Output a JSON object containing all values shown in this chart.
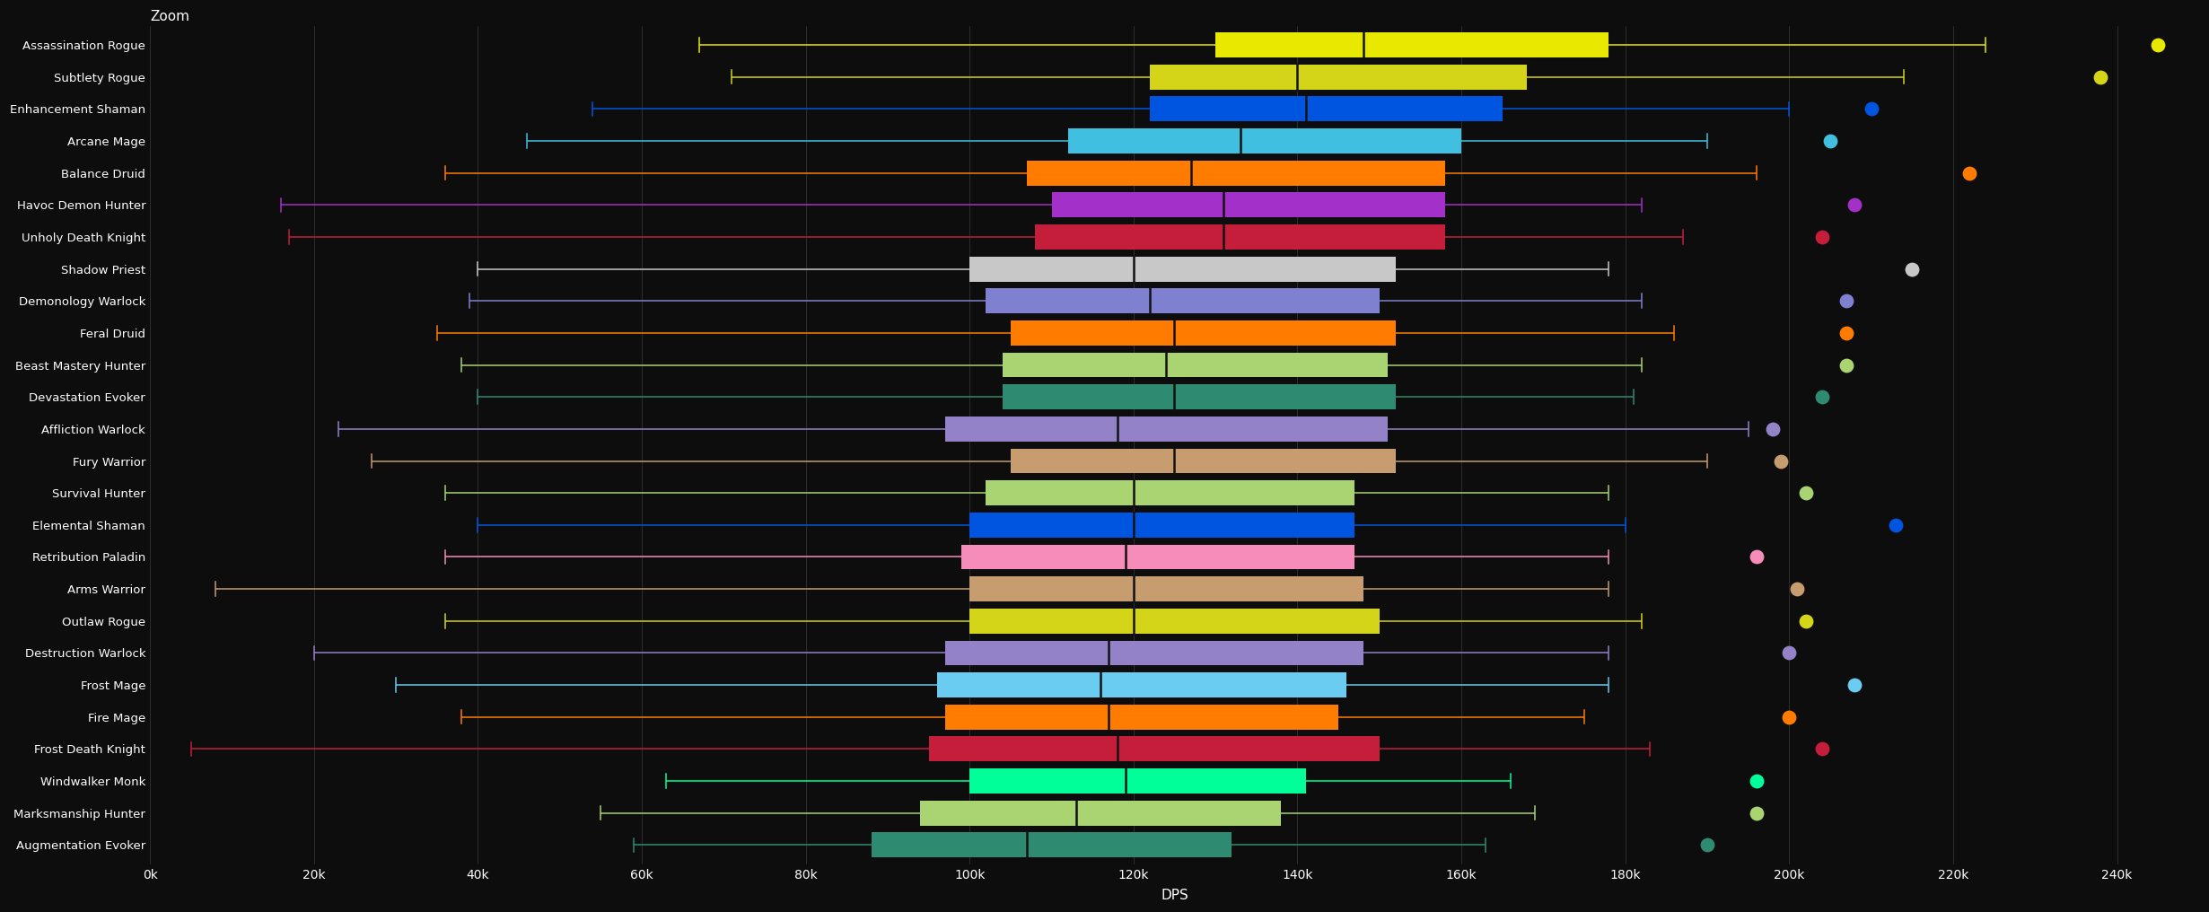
{
  "background_color": "#0d0d0d",
  "title": "Zoom",
  "xlabel": "DPS",
  "xlim": [
    0,
    250000
  ],
  "xticks": [
    0,
    20000,
    40000,
    60000,
    80000,
    100000,
    120000,
    140000,
    160000,
    180000,
    200000,
    220000,
    240000
  ],
  "xtick_labels": [
    "0k",
    "20k",
    "40k",
    "60k",
    "80k",
    "100k",
    "120k",
    "140k",
    "160k",
    "180k",
    "200k",
    "220k",
    "240k"
  ],
  "grid_color": "#333333",
  "specs": [
    {
      "name": "Assassination Rogue",
      "color": "#e8e800",
      "whisker_low": 67000,
      "q1": 130000,
      "median": 148000,
      "q3": 178000,
      "whisker_high": 224000,
      "dot": 245000
    },
    {
      "name": "Subtlety Rogue",
      "color": "#d4d418",
      "whisker_low": 71000,
      "q1": 122000,
      "median": 140000,
      "q3": 168000,
      "whisker_high": 214000,
      "dot": 238000
    },
    {
      "name": "Enhancement Shaman",
      "color": "#0055e0",
      "whisker_low": 54000,
      "q1": 122000,
      "median": 141000,
      "q3": 165000,
      "whisker_high": 200000,
      "dot": 210000
    },
    {
      "name": "Arcane Mage",
      "color": "#40bfe0",
      "whisker_low": 46000,
      "q1": 112000,
      "median": 133000,
      "q3": 160000,
      "whisker_high": 190000,
      "dot": 205000
    },
    {
      "name": "Balance Druid",
      "color": "#ff7c00",
      "whisker_low": 36000,
      "q1": 107000,
      "median": 127000,
      "q3": 158000,
      "whisker_high": 196000,
      "dot": 222000
    },
    {
      "name": "Havoc Demon Hunter",
      "color": "#a330c9",
      "whisker_low": 16000,
      "q1": 110000,
      "median": 131000,
      "q3": 158000,
      "whisker_high": 182000,
      "dot": 208000
    },
    {
      "name": "Unholy Death Knight",
      "color": "#c41e3b",
      "whisker_low": 17000,
      "q1": 108000,
      "median": 131000,
      "q3": 158000,
      "whisker_high": 187000,
      "dot": 204000
    },
    {
      "name": "Shadow Priest",
      "color": "#c8c8c8",
      "whisker_low": 40000,
      "q1": 100000,
      "median": 120000,
      "q3": 152000,
      "whisker_high": 178000,
      "dot": 215000
    },
    {
      "name": "Demonology Warlock",
      "color": "#8080d0",
      "whisker_low": 39000,
      "q1": 102000,
      "median": 122000,
      "q3": 150000,
      "whisker_high": 182000,
      "dot": 207000
    },
    {
      "name": "Feral Druid",
      "color": "#ff7c00",
      "whisker_low": 35000,
      "q1": 105000,
      "median": 125000,
      "q3": 152000,
      "whisker_high": 186000,
      "dot": 207000
    },
    {
      "name": "Beast Mastery Hunter",
      "color": "#aad372",
      "whisker_low": 38000,
      "q1": 104000,
      "median": 124000,
      "q3": 151000,
      "whisker_high": 182000,
      "dot": 207000
    },
    {
      "name": "Devastation Evoker",
      "color": "#2e8b72",
      "whisker_low": 40000,
      "q1": 104000,
      "median": 125000,
      "q3": 152000,
      "whisker_high": 181000,
      "dot": 204000
    },
    {
      "name": "Affliction Warlock",
      "color": "#9482c9",
      "whisker_low": 23000,
      "q1": 97000,
      "median": 118000,
      "q3": 151000,
      "whisker_high": 195000,
      "dot": 198000
    },
    {
      "name": "Fury Warrior",
      "color": "#c79c6e",
      "whisker_low": 27000,
      "q1": 105000,
      "median": 125000,
      "q3": 152000,
      "whisker_high": 190000,
      "dot": 199000
    },
    {
      "name": "Survival Hunter",
      "color": "#aad372",
      "whisker_low": 36000,
      "q1": 102000,
      "median": 120000,
      "q3": 147000,
      "whisker_high": 178000,
      "dot": 202000
    },
    {
      "name": "Elemental Shaman",
      "color": "#0055e0",
      "whisker_low": 40000,
      "q1": 100000,
      "median": 120000,
      "q3": 147000,
      "whisker_high": 180000,
      "dot": 213000
    },
    {
      "name": "Retribution Paladin",
      "color": "#f58cba",
      "whisker_low": 36000,
      "q1": 99000,
      "median": 119000,
      "q3": 147000,
      "whisker_high": 178000,
      "dot": 196000
    },
    {
      "name": "Arms Warrior",
      "color": "#c79c6e",
      "whisker_low": 8000,
      "q1": 100000,
      "median": 120000,
      "q3": 148000,
      "whisker_high": 178000,
      "dot": 201000
    },
    {
      "name": "Outlaw Rogue",
      "color": "#d4d418",
      "whisker_low": 36000,
      "q1": 100000,
      "median": 120000,
      "q3": 150000,
      "whisker_high": 182000,
      "dot": 202000
    },
    {
      "name": "Destruction Warlock",
      "color": "#9482c9",
      "whisker_low": 20000,
      "q1": 97000,
      "median": 117000,
      "q3": 148000,
      "whisker_high": 178000,
      "dot": 200000
    },
    {
      "name": "Frost Mage",
      "color": "#69ccf0",
      "whisker_low": 30000,
      "q1": 96000,
      "median": 116000,
      "q3": 146000,
      "whisker_high": 178000,
      "dot": 208000
    },
    {
      "name": "Fire Mage",
      "color": "#ff7c00",
      "whisker_low": 38000,
      "q1": 97000,
      "median": 117000,
      "q3": 145000,
      "whisker_high": 175000,
      "dot": 200000
    },
    {
      "name": "Frost Death Knight",
      "color": "#c41e3b",
      "whisker_low": 5000,
      "q1": 95000,
      "median": 118000,
      "q3": 150000,
      "whisker_high": 183000,
      "dot": 204000
    },
    {
      "name": "Windwalker Monk",
      "color": "#00ff98",
      "whisker_low": 63000,
      "q1": 100000,
      "median": 119000,
      "q3": 141000,
      "whisker_high": 166000,
      "dot": 196000
    },
    {
      "name": "Marksmanship Hunter",
      "color": "#aad372",
      "whisker_low": 55000,
      "q1": 94000,
      "median": 113000,
      "q3": 138000,
      "whisker_high": 169000,
      "dot": 196000
    },
    {
      "name": "Augmentation Evoker",
      "color": "#2e8b72",
      "whisker_low": 59000,
      "q1": 88000,
      "median": 107000,
      "q3": 132000,
      "whisker_high": 163000,
      "dot": 190000
    }
  ]
}
